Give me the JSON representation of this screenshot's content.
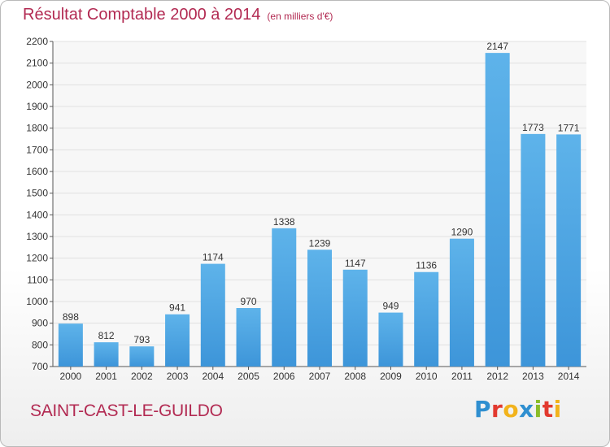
{
  "chart_data": {
    "type": "bar",
    "title": "Résultat Comptable 2000 à 2014",
    "subtitle": "(en milliers d'€)",
    "categories": [
      "2000",
      "2001",
      "2002",
      "2003",
      "2004",
      "2005",
      "2006",
      "2007",
      "2008",
      "2009",
      "2010",
      "2011",
      "2012",
      "2013",
      "2014"
    ],
    "values": [
      898,
      812,
      793,
      941,
      1174,
      970,
      1338,
      1239,
      1147,
      949,
      1136,
      1290,
      2147,
      1773,
      1771
    ],
    "ylim": [
      700,
      2200
    ],
    "yticks": [
      700,
      800,
      900,
      1000,
      1100,
      1200,
      1300,
      1400,
      1500,
      1600,
      1700,
      1800,
      1900,
      2000,
      2100,
      2200
    ],
    "xlabel": "",
    "ylabel": "",
    "grid": true,
    "bar_color": "#3d95d9",
    "bar_color_light": "#5eb3ea"
  },
  "footer": {
    "place_name": "SAINT-CAST-LE-GUILDO"
  },
  "logo": {
    "text": "Proxiti",
    "letters": [
      {
        "ch": "P",
        "color": "#2f8fd0"
      },
      {
        "ch": "r",
        "color": "#e2392f"
      },
      {
        "ch": "o",
        "color": "#f2b31c"
      },
      {
        "ch": "x",
        "color": "#2f8fd0"
      },
      {
        "ch": "i",
        "color": "#8bbd2a"
      },
      {
        "ch": "t",
        "color": "#e2392f"
      },
      {
        "ch": "i",
        "color": "#f2b31c"
      }
    ]
  },
  "colors": {
    "title": "#b22a52",
    "axis_text": "#333333",
    "grid": "#e0e0e0",
    "plot_bg": "#f7f7f7"
  }
}
